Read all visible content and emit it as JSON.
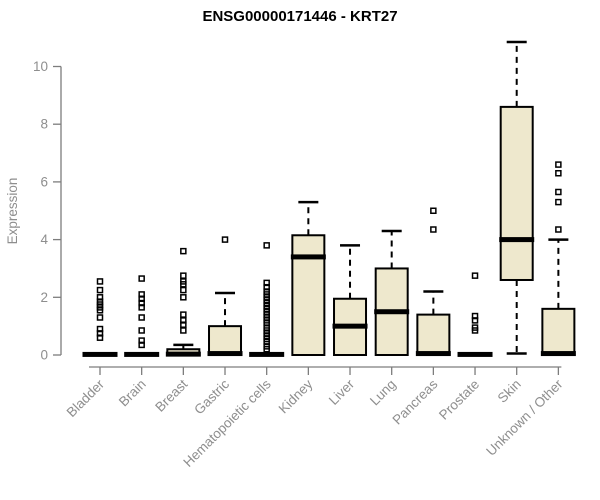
{
  "chart_data": {
    "type": "boxplot",
    "title": "ENSG00000171446 - KRT27",
    "ylabel": "Expression",
    "xlabel": "",
    "ylim": [
      0,
      10
    ],
    "yticks": [
      0,
      2,
      4,
      6,
      8,
      10
    ],
    "grid": false,
    "legend": null,
    "categories": [
      "Bladder",
      "Brain",
      "Breast",
      "Gastric",
      "Hematopoietic cells",
      "Kidney",
      "Liver",
      "Lung",
      "Pancreas",
      "Prostate",
      "Skin",
      "Unknown / Other"
    ],
    "series": [
      {
        "category": "Bladder",
        "q1": 0,
        "median": 0.02,
        "q3": 0.06,
        "whisker_low": 0,
        "whisker_high": 0.06,
        "outliers": [
          0.6,
          0.75,
          0.9,
          1.3,
          1.55,
          1.65,
          1.75,
          1.85,
          2.0,
          2.25,
          2.55
        ]
      },
      {
        "category": "Brain",
        "q1": 0,
        "median": 0.02,
        "q3": 0.06,
        "whisker_low": 0,
        "whisker_high": 0.06,
        "outliers": [
          0.35,
          0.5,
          0.85,
          1.3,
          1.65,
          1.8,
          1.95,
          2.1,
          2.65
        ]
      },
      {
        "category": "Breast",
        "q1": 0,
        "median": 0.03,
        "q3": 0.2,
        "whisker_low": 0,
        "whisker_high": 0.35,
        "outliers": [
          0.85,
          1.05,
          1.2,
          1.4,
          2.0,
          2.25,
          2.45,
          2.55,
          2.75,
          3.6
        ]
      },
      {
        "category": "Gastric",
        "q1": 0,
        "median": 0.05,
        "q3": 1.0,
        "whisker_low": 0,
        "whisker_high": 2.15,
        "outliers": [
          4.0
        ]
      },
      {
        "category": "Hematopoietic cells",
        "q1": 0,
        "median": 0.02,
        "q3": 0.06,
        "whisker_low": 0,
        "whisker_high": 0.06,
        "outliers": [
          0.2,
          0.3,
          0.45,
          0.55,
          0.65,
          0.75,
          0.85,
          0.95,
          1.1,
          1.2,
          1.3,
          1.4,
          1.5,
          1.6,
          1.7,
          1.8,
          1.9,
          2.0,
          2.1,
          2.2,
          2.35,
          2.5,
          3.8
        ]
      },
      {
        "category": "Kidney",
        "q1": 0,
        "median": 3.4,
        "q3": 4.15,
        "whisker_low": 0,
        "whisker_high": 5.3,
        "outliers": []
      },
      {
        "category": "Liver",
        "q1": 0,
        "median": 1.0,
        "q3": 1.95,
        "whisker_low": 0,
        "whisker_high": 3.8,
        "outliers": []
      },
      {
        "category": "Lung",
        "q1": 0,
        "median": 1.5,
        "q3": 3.0,
        "whisker_low": 0,
        "whisker_high": 4.3,
        "outliers": []
      },
      {
        "category": "Pancreas",
        "q1": 0,
        "median": 0.05,
        "q3": 1.4,
        "whisker_low": 0,
        "whisker_high": 2.2,
        "outliers": [
          4.35,
          5.0
        ]
      },
      {
        "category": "Prostate",
        "q1": 0,
        "median": 0.02,
        "q3": 0.06,
        "whisker_low": 0,
        "whisker_high": 0.06,
        "outliers": [
          0.85,
          0.95,
          1.2,
          1.35,
          2.75
        ]
      },
      {
        "category": "Skin",
        "q1": 2.6,
        "median": 4.0,
        "q3": 8.6,
        "whisker_low": 0.05,
        "whisker_high": 10.85,
        "outliers": []
      },
      {
        "category": "Unknown / Other",
        "q1": 0,
        "median": 0.05,
        "q3": 1.6,
        "whisker_low": 0,
        "whisker_high": 4.0,
        "outliers": [
          4.35,
          5.3,
          5.65,
          6.3,
          6.6
        ]
      }
    ]
  },
  "colors": {
    "box_fill": "#EEE8CD",
    "box_border": "#000000",
    "median": "#000000",
    "whisker": "#000000",
    "outlier": "#000000",
    "axis": "#7d7d7d",
    "tick_label": "#8e8e8e",
    "title": "#000000",
    "background": "#FFFFFF"
  }
}
